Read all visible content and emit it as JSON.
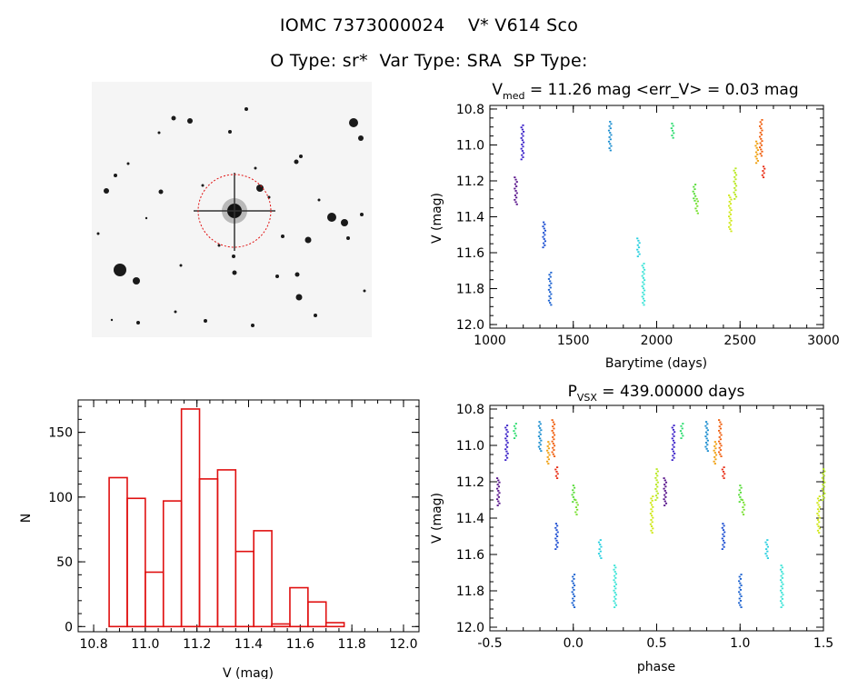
{
  "header": {
    "title_line1": "IOMC 7373000024    V* V614 Sco",
    "title_line2": "O Type: sr*  Var Type: SRA  SP Type:"
  },
  "chart_data": [
    {
      "type": "scatter",
      "panel": "light-curve",
      "title_main": "V",
      "title_sub": "med",
      "title_rest": " = 11.26 mag <err_V> = 0.03 mag",
      "xlabel": "Barytime (days)",
      "ylabel": "V (mag)",
      "xlim": [
        1000,
        3000
      ],
      "ylim": [
        12.0,
        10.8
      ],
      "xticks": [
        "1000",
        "1500",
        "2000",
        "2500",
        "3000"
      ],
      "yticks": [
        "10.8",
        "11.0",
        "11.2",
        "11.4",
        "11.6",
        "11.8",
        "12.0"
      ],
      "segments": [
        {
          "x": 1155,
          "y_top": 11.18,
          "y_bottom": 11.33,
          "color": "#5a168c"
        },
        {
          "x": 1195,
          "y_top": 10.89,
          "y_bottom": 11.08,
          "color": "#3b22c8"
        },
        {
          "x": 1325,
          "y_top": 11.43,
          "y_bottom": 11.57,
          "color": "#1f50d2"
        },
        {
          "x": 1360,
          "y_top": 11.71,
          "y_bottom": 11.89,
          "color": "#1c62d0"
        },
        {
          "x": 1720,
          "y_top": 10.87,
          "y_bottom": 11.03,
          "color": "#1e8fd0"
        },
        {
          "x": 1890,
          "y_top": 11.52,
          "y_bottom": 11.62,
          "color": "#2ad0e0"
        },
        {
          "x": 1920,
          "y_top": 11.66,
          "y_bottom": 11.89,
          "color": "#40e4d8"
        },
        {
          "x": 2095,
          "y_top": 10.88,
          "y_bottom": 10.96,
          "color": "#2edc70"
        },
        {
          "x": 2225,
          "y_top": 11.22,
          "y_bottom": 11.31,
          "color": "#58dc3a"
        },
        {
          "x": 2240,
          "y_top": 11.3,
          "y_bottom": 11.38,
          "color": "#78e030"
        },
        {
          "x": 2440,
          "y_top": 11.28,
          "y_bottom": 11.48,
          "color": "#d0e818"
        },
        {
          "x": 2470,
          "y_top": 11.13,
          "y_bottom": 11.3,
          "color": "#b8e820"
        },
        {
          "x": 2600,
          "y_top": 10.98,
          "y_bottom": 11.1,
          "color": "#f0a010"
        },
        {
          "x": 2625,
          "y_top": 10.86,
          "y_bottom": 11.06,
          "color": "#f06010"
        },
        {
          "x": 2640,
          "y_top": 11.12,
          "y_bottom": 11.18,
          "color": "#e83018"
        }
      ]
    },
    {
      "type": "bar",
      "panel": "histogram",
      "xlabel": "V (mag)",
      "ylabel": "N",
      "xlim": [
        10.8,
        12.0
      ],
      "ylim": [
        0,
        175
      ],
      "xticks": [
        "10.8",
        "11.0",
        "11.2",
        "11.4",
        "11.6",
        "11.8",
        "12.0"
      ],
      "yticks": [
        "0",
        "50",
        "100",
        "150"
      ],
      "bin_width": 0.07,
      "bin_starts": [
        10.86,
        10.93,
        11.0,
        11.07,
        11.14,
        11.21,
        11.28,
        11.35,
        11.42,
        11.49,
        11.56,
        11.63,
        11.7,
        11.77,
        11.84,
        11.91
      ],
      "values": [
        115,
        99,
        42,
        97,
        168,
        114,
        121,
        58,
        74,
        2,
        30,
        19,
        3,
        0,
        0,
        0
      ],
      "bar_color": "#e01010"
    },
    {
      "type": "scatter",
      "panel": "phase-curve",
      "title_main": "P",
      "title_sub": "VSX",
      "title_rest": " = 439.00000 days",
      "xlabel": "phase",
      "ylabel": "V (mag)",
      "xlim": [
        -0.5,
        1.5
      ],
      "ylim": [
        12.0,
        10.8
      ],
      "xticks": [
        "-0.5",
        "0.0",
        "0.5",
        "1.0",
        "1.5"
      ],
      "yticks": [
        "10.8",
        "11.0",
        "11.2",
        "11.4",
        "11.6",
        "11.8",
        "12.0"
      ],
      "segments": [
        {
          "x": -0.45,
          "y_top": 11.18,
          "y_bottom": 11.33,
          "color": "#5a168c"
        },
        {
          "x": -0.4,
          "y_top": 10.89,
          "y_bottom": 11.08,
          "color": "#3b22c8"
        },
        {
          "x": -0.2,
          "y_top": 10.87,
          "y_bottom": 11.03,
          "color": "#1e8fd0"
        },
        {
          "x": -0.35,
          "y_top": 10.88,
          "y_bottom": 10.96,
          "color": "#2edc70"
        },
        {
          "x": -0.15,
          "y_top": 10.98,
          "y_bottom": 11.1,
          "color": "#f0a010"
        },
        {
          "x": -0.12,
          "y_top": 10.86,
          "y_bottom": 11.06,
          "color": "#f06010"
        },
        {
          "x": -0.1,
          "y_top": 11.12,
          "y_bottom": 11.18,
          "color": "#e83018"
        },
        {
          "x": -0.1,
          "y_top": 11.43,
          "y_bottom": 11.57,
          "color": "#1f50d2"
        },
        {
          "x": 0.0,
          "y_top": 11.71,
          "y_bottom": 11.89,
          "color": "#1c62d0"
        },
        {
          "x": 0.0,
          "y_top": 11.22,
          "y_bottom": 11.31,
          "color": "#58dc3a"
        },
        {
          "x": 0.02,
          "y_top": 11.3,
          "y_bottom": 11.38,
          "color": "#78e030"
        },
        {
          "x": 0.16,
          "y_top": 11.52,
          "y_bottom": 11.62,
          "color": "#2ad0e0"
        },
        {
          "x": 0.25,
          "y_top": 11.66,
          "y_bottom": 11.89,
          "color": "#40e4d8"
        },
        {
          "x": 0.47,
          "y_top": 11.28,
          "y_bottom": 11.48,
          "color": "#d0e818"
        },
        {
          "x": 0.5,
          "y_top": 11.13,
          "y_bottom": 11.3,
          "color": "#b8e820"
        },
        {
          "x": 0.55,
          "y_top": 11.18,
          "y_bottom": 11.33,
          "color": "#5a168c"
        },
        {
          "x": 0.6,
          "y_top": 10.89,
          "y_bottom": 11.08,
          "color": "#3b22c8"
        },
        {
          "x": 0.8,
          "y_top": 10.87,
          "y_bottom": 11.03,
          "color": "#1e8fd0"
        },
        {
          "x": 0.65,
          "y_top": 10.88,
          "y_bottom": 10.96,
          "color": "#2edc70"
        },
        {
          "x": 0.85,
          "y_top": 10.98,
          "y_bottom": 11.1,
          "color": "#f0a010"
        },
        {
          "x": 0.88,
          "y_top": 10.86,
          "y_bottom": 11.06,
          "color": "#f06010"
        },
        {
          "x": 0.9,
          "y_top": 11.12,
          "y_bottom": 11.18,
          "color": "#e83018"
        },
        {
          "x": 0.9,
          "y_top": 11.43,
          "y_bottom": 11.57,
          "color": "#1f50d2"
        },
        {
          "x": 1.0,
          "y_top": 11.71,
          "y_bottom": 11.89,
          "color": "#1c62d0"
        },
        {
          "x": 1.0,
          "y_top": 11.22,
          "y_bottom": 11.31,
          "color": "#58dc3a"
        },
        {
          "x": 1.02,
          "y_top": 11.3,
          "y_bottom": 11.38,
          "color": "#78e030"
        },
        {
          "x": 1.16,
          "y_top": 11.52,
          "y_bottom": 11.62,
          "color": "#2ad0e0"
        },
        {
          "x": 1.25,
          "y_top": 11.66,
          "y_bottom": 11.89,
          "color": "#40e4d8"
        },
        {
          "x": 1.47,
          "y_top": 11.28,
          "y_bottom": 11.48,
          "color": "#d0e818"
        },
        {
          "x": 1.5,
          "y_top": 11.13,
          "y_bottom": 11.3,
          "color": "#b8e820"
        }
      ]
    }
  ],
  "sky_image": {
    "background": "#f6f6f6",
    "aperture_color": "#e01010"
  }
}
